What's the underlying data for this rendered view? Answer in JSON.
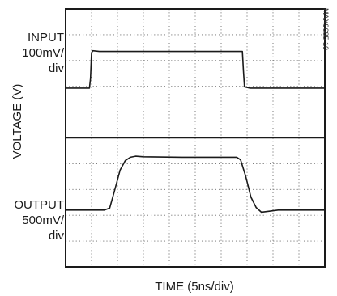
{
  "chart_data": {
    "type": "line",
    "title": "",
    "xlabel": "TIME (5ns/div)",
    "ylabel": "VOLTAGE (V)",
    "figure_id": "MAX9685 10",
    "grid": true,
    "divisions": {
      "x": 10,
      "y": 10
    },
    "xlim": [
      0,
      10
    ],
    "x_unit": "div",
    "series": [
      {
        "name": "",
        "channel_label": [
          "INPUT",
          "100mV/",
          "div"
        ],
        "y_unit": "div",
        "points": [
          [
            0.0,
            6.93
          ],
          [
            0.92,
            6.93
          ],
          [
            0.96,
            7.3
          ],
          [
            1.0,
            8.3
          ],
          [
            1.05,
            8.38
          ],
          [
            1.3,
            8.35
          ],
          [
            3.0,
            8.35
          ],
          [
            5.0,
            8.35
          ],
          [
            6.82,
            8.35
          ],
          [
            6.86,
            7.6
          ],
          [
            6.9,
            6.98
          ],
          [
            7.1,
            6.93
          ],
          [
            8.5,
            6.93
          ],
          [
            10.0,
            6.93
          ]
        ]
      },
      {
        "name": "",
        "channel_label": [
          "OUTPUT",
          "500mV/",
          "div"
        ],
        "y_unit": "div",
        "points": [
          [
            0.0,
            2.2
          ],
          [
            1.5,
            2.2
          ],
          [
            1.7,
            2.28
          ],
          [
            1.9,
            3.0
          ],
          [
            2.1,
            3.75
          ],
          [
            2.3,
            4.12
          ],
          [
            2.5,
            4.25
          ],
          [
            2.7,
            4.29
          ],
          [
            3.0,
            4.27
          ],
          [
            4.5,
            4.25
          ],
          [
            6.0,
            4.25
          ],
          [
            6.6,
            4.25
          ],
          [
            6.75,
            4.15
          ],
          [
            6.95,
            3.5
          ],
          [
            7.15,
            2.7
          ],
          [
            7.35,
            2.3
          ],
          [
            7.55,
            2.12
          ],
          [
            7.8,
            2.15
          ],
          [
            8.2,
            2.2
          ],
          [
            10.0,
            2.2
          ]
        ]
      }
    ],
    "reference_line_y": 5.0
  }
}
